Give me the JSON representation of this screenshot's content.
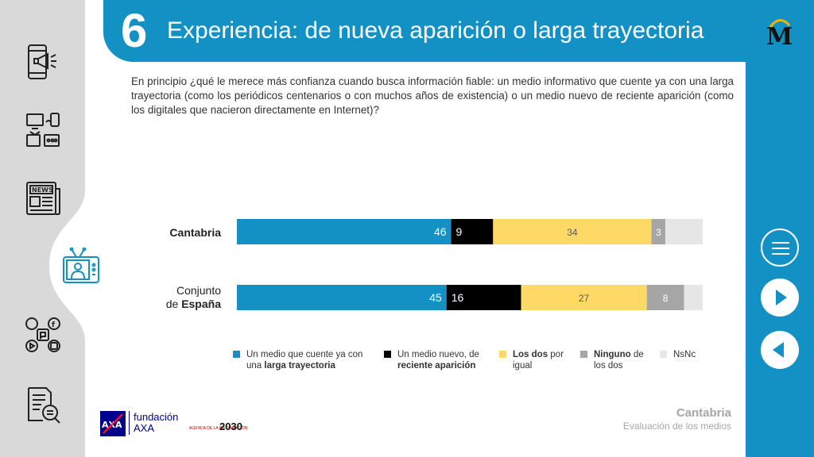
{
  "header": {
    "number": "6",
    "title": "Experiencia: de nueva aparición o larga trayectoria"
  },
  "question": "En principio ¿qué le merece más confianza cuando busca información fiable: un medio informativo que cuente ya con una larga trayectoria (como los periódicos centenarios o con muchos años de existencia) o un medio nuevo de reciente aparición (como los digitales que nacieron directamente en Internet)?",
  "rows": [
    {
      "label_plain": "",
      "label_bold": "Cantabria"
    },
    {
      "label_plain": "Conjunto de ",
      "label_bold": "España",
      "label_line1": "Conjunto",
      "label_line2_plain": "de "
    }
  ],
  "legend": [
    {
      "plain1": "Un medio que cuente ya con",
      "plain2": "una ",
      "bold": "larga trayectoria",
      "after": ""
    },
    {
      "plain1": "Un medio nuevo, de",
      "plain2": "",
      "bold": "reciente aparición",
      "after": ""
    },
    {
      "bold1": "Los dos",
      "plain1": " por",
      "plain2": "igual"
    },
    {
      "bold1": "Ninguno",
      "plain1": " de",
      "plain2": "los dos"
    },
    {
      "plain1": "NsNc"
    }
  ],
  "chart_data": {
    "type": "bar",
    "orientation": "horizontal",
    "stacked": true,
    "categories": [
      "Cantabria",
      "Conjunto de España"
    ],
    "series": [
      {
        "name": "Un medio que cuente ya con una larga trayectoria",
        "values": [
          46,
          45
        ],
        "color": "#1391c5",
        "label_color": "#ffffff"
      },
      {
        "name": "Un medio nuevo, de reciente aparición",
        "values": [
          9,
          16
        ],
        "color": "#000000",
        "label_color": "#ffffff"
      },
      {
        "name": "Los dos por igual",
        "values": [
          34,
          27
        ],
        "color": "#ffd966",
        "label_color": "#595959"
      },
      {
        "name": "Ninguno de los dos",
        "values": [
          3,
          8
        ],
        "color": "#a6a6a6",
        "label_color": "#ffffff"
      },
      {
        "name": "NsNc",
        "values": [
          8,
          4
        ],
        "color": "#e7e6e6",
        "label_color": "#595959",
        "show_labels": false
      }
    ],
    "xlim": [
      0,
      100
    ],
    "legend_position": "bottom"
  },
  "footer": {
    "region": "Cantabria",
    "subtitle": "Evaluación de los medios"
  },
  "logos": {
    "axa_line1": "fundación",
    "axa_line2": "AXA",
    "axa_mark": "AXA",
    "agenda": "2030",
    "agenda_small": "AGENDA DE LA INFORMACIÓN",
    "masthead": "M"
  },
  "icons": [
    "phone-megaphone-icon",
    "devices-icon",
    "newspaper-icon",
    "tv-presenter-icon",
    "social-media-icon",
    "document-search-icon",
    "menu-icon",
    "next-arrow-icon",
    "prev-arrow-icon"
  ],
  "colors": {
    "accent": "#1391c5",
    "sidebar": "#d9d9d9"
  }
}
